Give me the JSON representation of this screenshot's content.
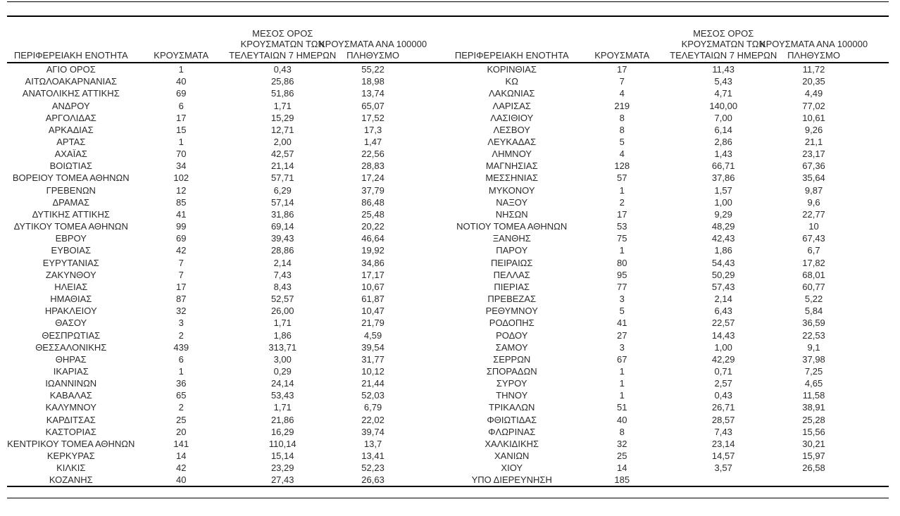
{
  "page": {
    "background": "#ffffff",
    "text_color": "#2b2b2b",
    "line_color": "#000000"
  },
  "table": {
    "column_headers": {
      "region": "ΠΕΡΙΦΕΡΕΙΑΚΗ ΕΝΟΤΗΤΑ",
      "cases": "ΚΡΟΥΣΜΑΤΑ",
      "avg_7day_lines": [
        "ΜΕΣΟΣ ΟΡΟΣ",
        "ΚΡΟΥΣΜΑΤΩΝ ΤΩΝ",
        "ΤΕΛΕΥΤΑΙΩΝ 7 ΗΜΕΡΩΝ"
      ],
      "per_100k_lines": [
        "ΚΡΟΥΣΜΑΤΑ ΑΝΑ 100000",
        "ΠΛΗΘΥΣΜΟ"
      ]
    },
    "left_rows": [
      [
        "ΑΓΙΟ ΟΡΟΣ",
        "1",
        "0,43",
        "55,22"
      ],
      [
        "ΑΙΤΩΛΟΑΚΑΡΝΑΝΙΑΣ",
        "40",
        "25,86",
        "18,98"
      ],
      [
        "ΑΝΑΤΟΛΙΚΗΣ ΑΤΤΙΚΗΣ",
        "69",
        "51,86",
        "13,74"
      ],
      [
        "ΑΝΔΡΟΥ",
        "6",
        "1,71",
        "65,07"
      ],
      [
        "ΑΡΓΟΛΙΔΑΣ",
        "17",
        "15,29",
        "17,52"
      ],
      [
        "ΑΡΚΑΔΙΑΣ",
        "15",
        "12,71",
        "17,3"
      ],
      [
        "ΑΡΤΑΣ",
        "1",
        "2,00",
        "1,47"
      ],
      [
        "ΑΧΑΪΑΣ",
        "70",
        "42,57",
        "22,56"
      ],
      [
        "ΒΟΙΩΤΙΑΣ",
        "34",
        "21,14",
        "28,83"
      ],
      [
        "ΒΟΡΕΙΟΥ ΤΟΜΕΑ ΑΘΗΝΩΝ",
        "102",
        "57,71",
        "17,24"
      ],
      [
        "ΓΡΕΒΕΝΩΝ",
        "12",
        "6,29",
        "37,79"
      ],
      [
        "ΔΡΑΜΑΣ",
        "85",
        "57,14",
        "86,48"
      ],
      [
        "ΔΥΤΙΚΗΣ ΑΤΤΙΚΗΣ",
        "41",
        "31,86",
        "25,48"
      ],
      [
        "ΔΥΤΙΚΟΥ ΤΟΜΕΑ ΑΘΗΝΩΝ",
        "99",
        "69,14",
        "20,22"
      ],
      [
        "ΕΒΡΟΥ",
        "69",
        "39,43",
        "46,64"
      ],
      [
        "ΕΥΒΟΙΑΣ",
        "42",
        "28,86",
        "19,92"
      ],
      [
        "ΕΥΡΥΤΑΝΙΑΣ",
        "7",
        "2,14",
        "34,86"
      ],
      [
        "ΖΑΚΥΝΘΟΥ",
        "7",
        "7,43",
        "17,17"
      ],
      [
        "ΗΛΕΙΑΣ",
        "17",
        "8,43",
        "10,67"
      ],
      [
        "ΗΜΑΘΙΑΣ",
        "87",
        "52,57",
        "61,87"
      ],
      [
        "ΗΡΑΚΛΕΙΟΥ",
        "32",
        "26,00",
        "10,47"
      ],
      [
        "ΘΑΣΟΥ",
        "3",
        "1,71",
        "21,79"
      ],
      [
        "ΘΕΣΠΡΩΤΙΑΣ",
        "2",
        "1,86",
        "4,59"
      ],
      [
        "ΘΕΣΣΑΛΟΝΙΚΗΣ",
        "439",
        "313,71",
        "39,54"
      ],
      [
        "ΘΗΡΑΣ",
        "6",
        "3,00",
        "31,77"
      ],
      [
        "ΙΚΑΡΙΑΣ",
        "1",
        "0,29",
        "10,12"
      ],
      [
        "ΙΩΑΝΝΙΝΩΝ",
        "36",
        "24,14",
        "21,44"
      ],
      [
        "ΚΑΒΑΛΑΣ",
        "65",
        "53,43",
        "52,03"
      ],
      [
        "ΚΑΛΥΜΝΟΥ",
        "2",
        "1,71",
        "6,79"
      ],
      [
        "ΚΑΡΔΙΤΣΑΣ",
        "25",
        "21,86",
        "22,02"
      ],
      [
        "ΚΑΣΤΟΡΙΑΣ",
        "20",
        "16,29",
        "39,74"
      ],
      [
        "ΚΕΝΤΡΙΚΟΥ ΤΟΜΕΑ ΑΘΗΝΩΝ",
        "141",
        "110,14",
        "13,7"
      ],
      [
        "ΚΕΡΚΥΡΑΣ",
        "14",
        "15,14",
        "13,41"
      ],
      [
        "ΚΙΛΚΙΣ",
        "42",
        "23,29",
        "52,23"
      ],
      [
        "ΚΟΖΑΝΗΣ",
        "40",
        "27,43",
        "26,63"
      ]
    ],
    "right_rows": [
      [
        "ΚΟΡΙΝΘΙΑΣ",
        "17",
        "11,43",
        "11,72"
      ],
      [
        "ΚΩ",
        "7",
        "5,43",
        "20,35"
      ],
      [
        "ΛΑΚΩΝΙΑΣ",
        "4",
        "4,71",
        "4,49"
      ],
      [
        "ΛΑΡΙΣΑΣ",
        "219",
        "140,00",
        "77,02"
      ],
      [
        "ΛΑΣΙΘΙΟΥ",
        "8",
        "7,00",
        "10,61"
      ],
      [
        "ΛΕΣΒΟΥ",
        "8",
        "6,14",
        "9,26"
      ],
      [
        "ΛΕΥΚΑΔΑΣ",
        "5",
        "2,86",
        "21,1"
      ],
      [
        "ΛΗΜΝΟΥ",
        "4",
        "1,43",
        "23,17"
      ],
      [
        "ΜΑΓΝΗΣΙΑΣ",
        "128",
        "66,71",
        "67,36"
      ],
      [
        "ΜΕΣΣΗΝΙΑΣ",
        "57",
        "37,86",
        "35,64"
      ],
      [
        "ΜΥΚΟΝΟΥ",
        "1",
        "1,57",
        "9,87"
      ],
      [
        "ΝΑΞΟΥ",
        "2",
        "1,00",
        "9,6"
      ],
      [
        "ΝΗΣΩΝ",
        "17",
        "9,29",
        "22,77"
      ],
      [
        "ΝΟΤΙΟΥ ΤΟΜΕΑ ΑΘΗΝΩΝ",
        "53",
        "48,29",
        "10"
      ],
      [
        "ΞΑΝΘΗΣ",
        "75",
        "42,43",
        "67,43"
      ],
      [
        "ΠΑΡΟΥ",
        "1",
        "1,86",
        "6,7"
      ],
      [
        "ΠΕΙΡΑΙΩΣ",
        "80",
        "54,43",
        "17,82"
      ],
      [
        "ΠΕΛΛΑΣ",
        "95",
        "50,29",
        "68,01"
      ],
      [
        "ΠΙΕΡΙΑΣ",
        "77",
        "57,43",
        "60,77"
      ],
      [
        "ΠΡΕΒΕΖΑΣ",
        "3",
        "2,14",
        "5,22"
      ],
      [
        "ΡΕΘΥΜΝΟΥ",
        "5",
        "6,43",
        "5,84"
      ],
      [
        "ΡΟΔΟΠΗΣ",
        "41",
        "22,57",
        "36,59"
      ],
      [
        "ΡΟΔΟΥ",
        "27",
        "14,43",
        "22,53"
      ],
      [
        "ΣΑΜΟΥ",
        "3",
        "1,00",
        "9,1"
      ],
      [
        "ΣΕΡΡΩΝ",
        "67",
        "42,29",
        "37,98"
      ],
      [
        "ΣΠΟΡΑΔΩΝ",
        "1",
        "0,71",
        "7,25"
      ],
      [
        "ΣΥΡΟΥ",
        "1",
        "2,57",
        "4,65"
      ],
      [
        "ΤΗΝΟΥ",
        "1",
        "0,43",
        "11,58"
      ],
      [
        "ΤΡΙΚΑΛΩΝ",
        "51",
        "26,71",
        "38,91"
      ],
      [
        "ΦΘΙΩΤΙΔΑΣ",
        "40",
        "28,57",
        "25,28"
      ],
      [
        "ΦΛΩΡΙΝΑΣ",
        "8",
        "7,43",
        "15,56"
      ],
      [
        "ΧΑΛΚΙΔΙΚΗΣ",
        "32",
        "23,14",
        "30,21"
      ],
      [
        "ΧΑΝΙΩΝ",
        "25",
        "14,57",
        "15,97"
      ],
      [
        "ΧΙΟΥ",
        "14",
        "3,57",
        "26,58"
      ],
      [
        "ΥΠΟ ΔΙΕΡΕΥΝΗΣΗ",
        "185",
        "",
        ""
      ]
    ]
  }
}
